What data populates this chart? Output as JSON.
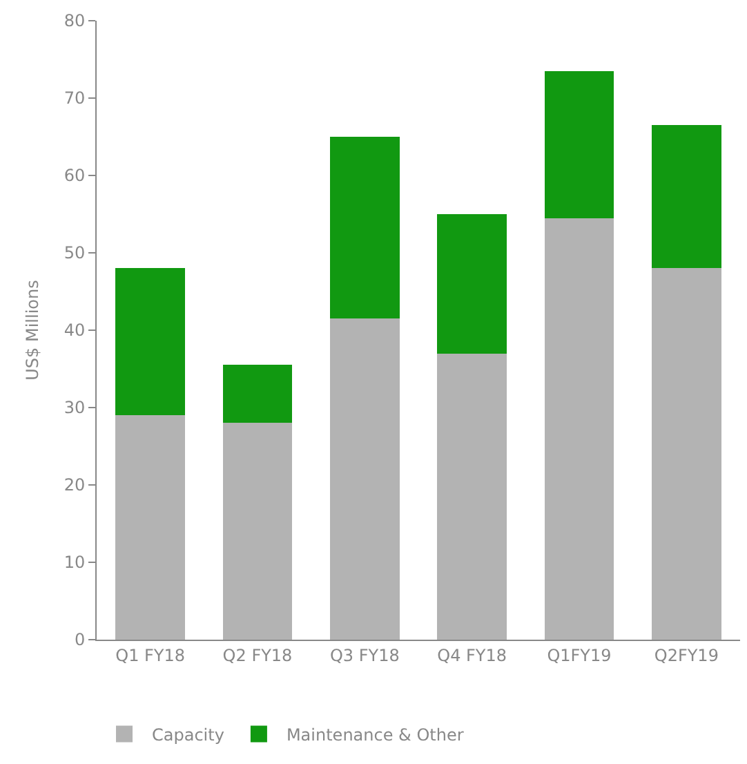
{
  "chart_data": {
    "type": "bar",
    "stacked": true,
    "categories": [
      "Q1 FY18",
      "Q2 FY18",
      "Q3 FY18",
      "Q4 FY18",
      "Q1FY19",
      "Q2FY19"
    ],
    "series": [
      {
        "name": "Capacity",
        "color": "#b3b3b3",
        "values": [
          29,
          28,
          41.5,
          37,
          54.5,
          48
        ]
      },
      {
        "name": "Maintenance & Other",
        "color": "#119911",
        "values": [
          19,
          7.5,
          23.5,
          18,
          19,
          18.5
        ]
      }
    ],
    "ylabel": "US$ Millions",
    "ylim": [
      0,
      80
    ],
    "yticks": [
      0,
      10,
      20,
      30,
      40,
      50,
      60,
      70,
      80
    ],
    "legend": "bottom"
  }
}
